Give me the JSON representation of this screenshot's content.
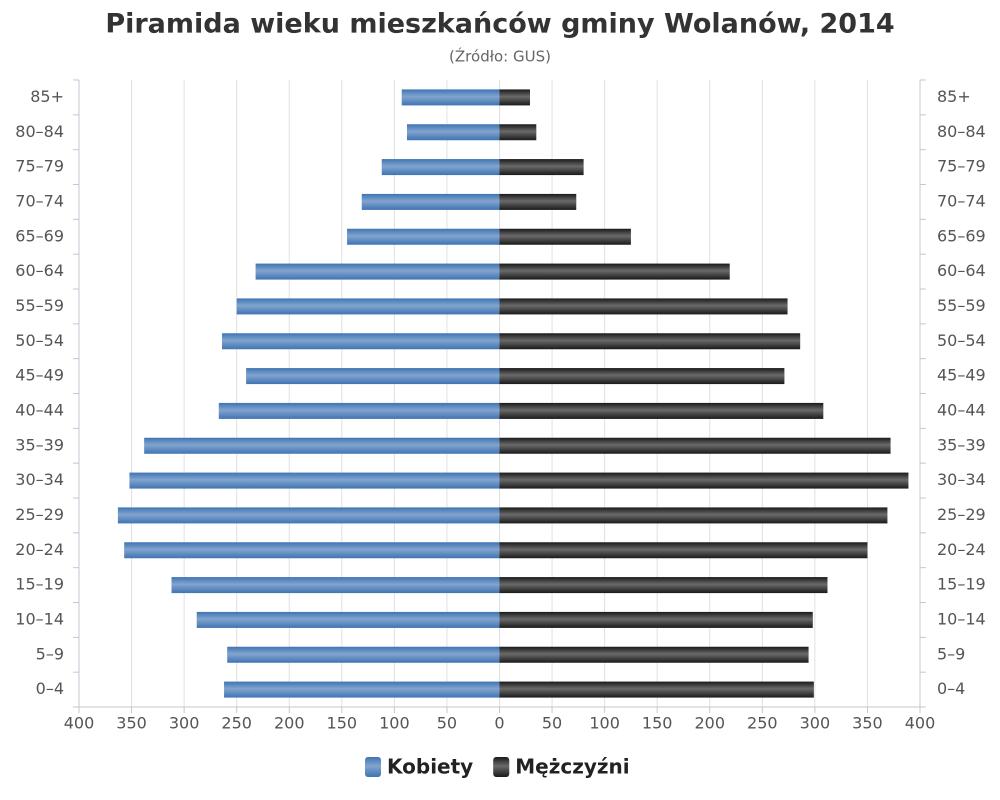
{
  "chart_data": {
    "type": "pyramid",
    "title": "Piramida wieku mieszkańców gminy Wolanów, 2014",
    "subtitle": "(Źródło: GUS)",
    "categories": [
      "85+",
      "80–84",
      "75–79",
      "70–74",
      "65–69",
      "60–64",
      "55–59",
      "50–54",
      "45–49",
      "40–44",
      "35–39",
      "30–34",
      "25–29",
      "20–24",
      "15–19",
      "10–14",
      "5–9",
      "0–4"
    ],
    "series": [
      {
        "name": "Kobiety",
        "color": "#3f74b4",
        "values": [
          93,
          88,
          112,
          131,
          145,
          232,
          250,
          264,
          241,
          267,
          338,
          352,
          363,
          357,
          312,
          288,
          259,
          262
        ]
      },
      {
        "name": "Mężczyźni",
        "color": "#1a1a1a",
        "values": [
          29,
          35,
          80,
          73,
          125,
          219,
          274,
          286,
          271,
          308,
          372,
          389,
          369,
          350,
          312,
          298,
          294,
          299
        ]
      }
    ],
    "xlim": [
      -400,
      400
    ],
    "xticks": [
      {
        "value": -400,
        "label": "400"
      },
      {
        "value": -350,
        "label": "350"
      },
      {
        "value": -300,
        "label": "300"
      },
      {
        "value": -250,
        "label": "250"
      },
      {
        "value": -200,
        "label": "200"
      },
      {
        "value": -150,
        "label": "150"
      },
      {
        "value": -100,
        "label": "100"
      },
      {
        "value": -50,
        "label": "50"
      },
      0,
      50,
      100,
      150,
      200,
      250,
      300,
      350,
      400
    ],
    "grid": true
  }
}
